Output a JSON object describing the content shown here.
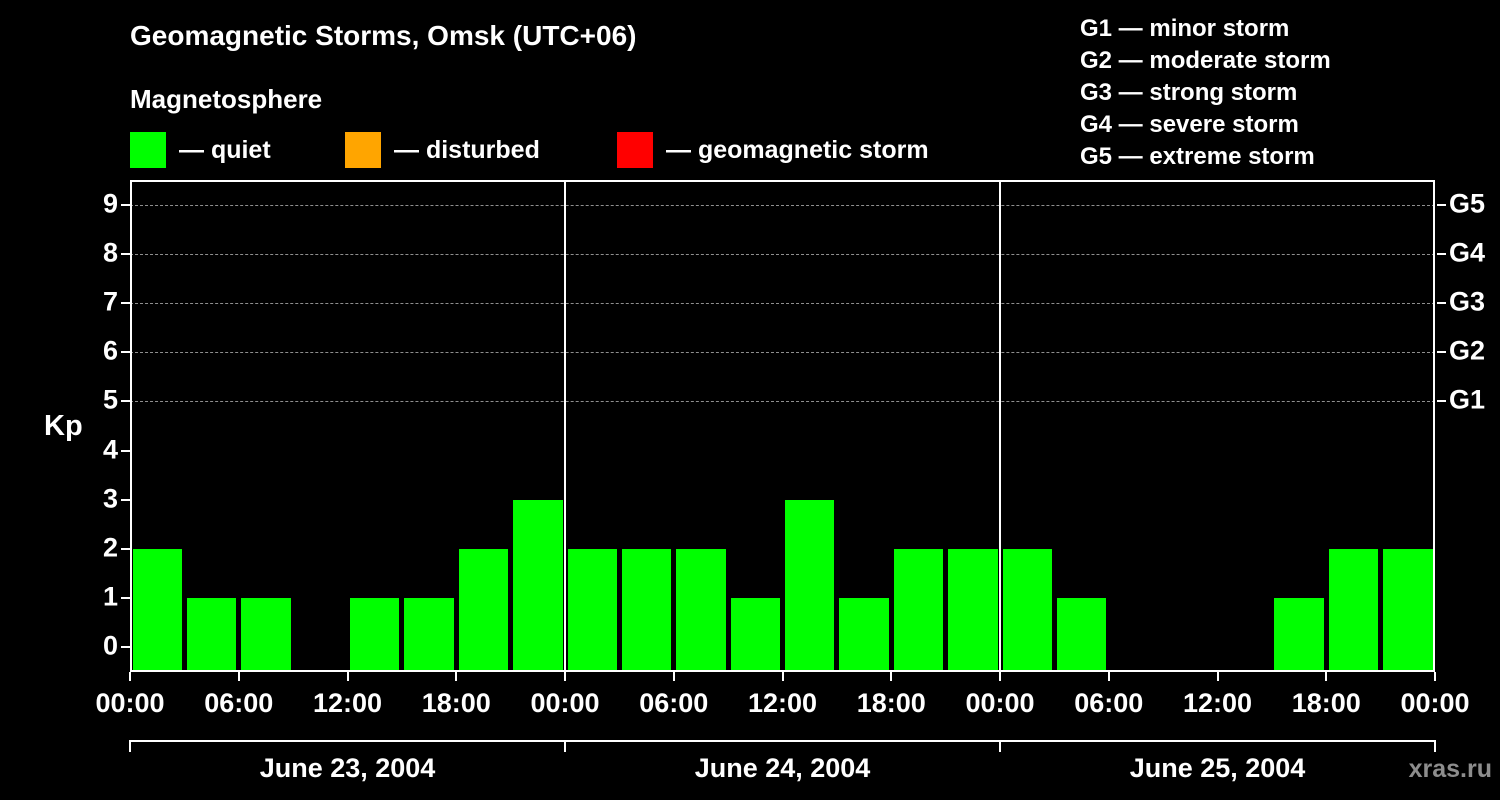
{
  "title": "Geomagnetic Storms, Omsk (UTC+06)",
  "subtitle": "Magnetosphere",
  "legend": {
    "items": [
      {
        "label": "— quiet",
        "color": "#00ff00"
      },
      {
        "label": "— disturbed",
        "color": "#ffa500"
      },
      {
        "label": "— geomagnetic storm",
        "color": "#ff0000"
      }
    ]
  },
  "storm_scale": {
    "items": [
      "G1 — minor storm",
      "G2 — moderate storm",
      "G3 — strong storm",
      "G4 — severe storm",
      "G5 — extreme storm"
    ]
  },
  "watermark": "xras.ru",
  "chart_data": {
    "type": "bar",
    "title": "Geomagnetic Storms, Omsk (UTC+06)",
    "xlabel": "",
    "ylabel": "Kp",
    "ylim": [
      -0.5,
      9.5
    ],
    "yticks": [
      0,
      1,
      2,
      3,
      4,
      5,
      6,
      7,
      8,
      9
    ],
    "gridlines_at": [
      5,
      6,
      7,
      8,
      9
    ],
    "grid": "horizontal dashed at storm levels G1-G5",
    "legend_position": "top",
    "right_axis_labels": [
      {
        "value": 5,
        "label": "G1"
      },
      {
        "value": 6,
        "label": "G2"
      },
      {
        "value": 7,
        "label": "G3"
      },
      {
        "value": 8,
        "label": "G4"
      },
      {
        "value": 9,
        "label": "G5"
      }
    ],
    "bar_color": "#00ff00",
    "interval_hours": 3,
    "bars_per_day": 8,
    "x_tick_labels": [
      "00:00",
      "06:00",
      "12:00",
      "18:00",
      "00:00",
      "06:00",
      "12:00",
      "18:00",
      "00:00",
      "06:00",
      "12:00",
      "18:00",
      "00:00"
    ],
    "days": [
      {
        "date": "June 23, 2004",
        "values": [
          2,
          1,
          1,
          0,
          1,
          1,
          2,
          3
        ]
      },
      {
        "date": "June 24, 2004",
        "values": [
          2,
          2,
          2,
          1,
          3,
          1,
          2,
          2
        ]
      },
      {
        "date": "June 25, 2004",
        "values": [
          2,
          1,
          0,
          0,
          0,
          1,
          2,
          2
        ]
      }
    ]
  }
}
